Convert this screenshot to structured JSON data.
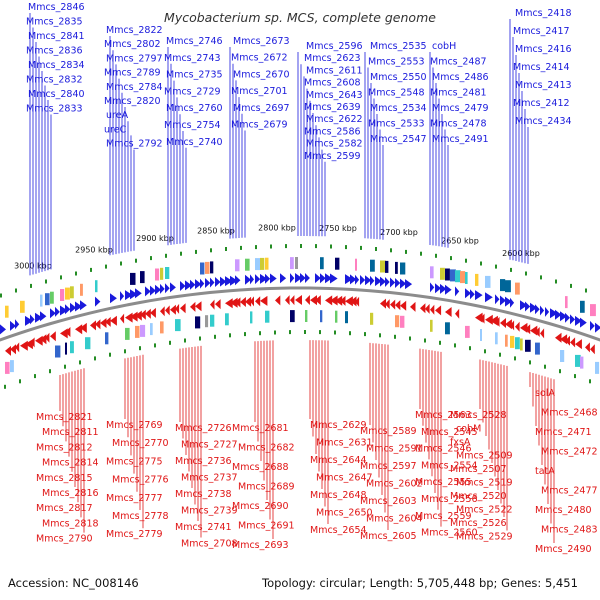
{
  "title": "Mycobacterium sp. MCS, complete genome",
  "footer": {
    "accession": "Accession: NC_008146",
    "summary": "Topology: circular; Length: 5,705,448 bp; Genes: 5,451"
  },
  "colors": {
    "forward": "#1a1adc",
    "reverse": "#e01515",
    "backbone": "#8c8c8c",
    "marker": "#238c23",
    "text": "#111111"
  },
  "ticks": [
    "3000 kbp",
    "2950 kbp",
    "2900 kbp",
    "2850 kbp",
    "2800 kbp",
    "2750 kbp",
    "2700 kbp",
    "2650 kbp",
    "2600 kbp"
  ],
  "top_labels": [
    "Mmcs_2846",
    "Mmcs_2835",
    "Mmcs_2841",
    "Mmcs_2836",
    "Mmcs_2834",
    "Mmcs_2832",
    "Mmcs_2840",
    "Mmcs_2833",
    "Mmcs_2822",
    "Mmcs_2802",
    "Mmcs_2797",
    "Mmcs_2789",
    "Mmcs_2784",
    "Mmcs_2820",
    "ureA",
    "ureC",
    "Mmcs_2792",
    "Mmcs_2746",
    "Mmcs_2743",
    "Mmcs_2735",
    "Mmcs_2729",
    "Mmcs_2760",
    "Mmcs_2754",
    "Mmcs_2740",
    "Mmcs_2673",
    "Mmcs_2672",
    "Mmcs_2670",
    "Mmcs_2701",
    "Mmcs_2697",
    "Mmcs_2679",
    "Mmcs_2596",
    "Mmcs_2623",
    "Mmcs_2611",
    "Mmcs_2608",
    "Mmcs_2643",
    "Mmcs_2639",
    "Mmcs_2622",
    "Mmcs_2586",
    "Mmcs_2582",
    "Mmcs_2599",
    "Mmcs_2535",
    "Mmcs_2553",
    "Mmcs_2550",
    "Mmcs_2548",
    "Mmcs_2534",
    "Mmcs_2533",
    "Mmcs_2547",
    "cobH",
    "Mmcs_2487",
    "Mmcs_2486",
    "Mmcs_2481",
    "Mmcs_2479",
    "Mmcs_2478",
    "Mmcs_2491",
    "Mmcs_2418",
    "Mmcs_2417",
    "Mmcs_2416",
    "Mmcs_2414",
    "Mmcs_2413",
    "Mmcs_2412",
    "Mmcs_2434"
  ],
  "bottom_labels": [
    "Mmcs_2821",
    "Mmcs_2811",
    "Mmcs_2812",
    "Mmcs_2814",
    "Mmcs_2815",
    "Mmcs_2816",
    "Mmcs_2817",
    "Mmcs_2818",
    "Mmcs_2790",
    "Mmcs_2769",
    "Mmcs_2770",
    "Mmcs_2775",
    "Mmcs_2776",
    "Mmcs_2777",
    "Mmcs_2778",
    "Mmcs_2779",
    "Mmcs_2726",
    "Mmcs_2727",
    "Mmcs_2736",
    "Mmcs_2737",
    "Mmcs_2738",
    "Mmcs_2739",
    "Mmcs_2741",
    "Mmcs_2708",
    "Mmcs_2681",
    "Mmcs_2682",
    "Mmcs_2688",
    "Mmcs_2689",
    "Mmcs_2690",
    "Mmcs_2691",
    "Mmcs_2693",
    "Mmcs_2629",
    "Mmcs_2631",
    "Mmcs_2644",
    "Mmcs_2647",
    "Mmcs_2648",
    "Mmcs_2650",
    "Mmcs_2654",
    "Mmcs_2589",
    "Mmcs_2591",
    "Mmcs_2597",
    "Mmcs_2602",
    "Mmcs_2603",
    "Mmcs_2604",
    "Mmcs_2605",
    "Mmcs_2563",
    "Mmcs_2545",
    "Mmcs_2546",
    "Mmcs_2554",
    "Mmcs_2555",
    "Mmcs_2556",
    "Mmcs_2559",
    "Mmcs_2560",
    "Mmcs_2528",
    "cobM",
    "fxsA",
    "Mmcs_2509",
    "Mmcs_2507",
    "Mmcs_2519",
    "Mmcs_2520",
    "Mmcs_2522",
    "Mmcs_2526",
    "Mmcs_2529",
    "solA",
    "Mmcs_2468",
    "Mmcs_2471",
    "Mmcs_2472",
    "tatA",
    "Mmcs_2477",
    "Mmcs_2480",
    "Mmcs_2483",
    "Mmcs_2490",
    "Mmcs_2492"
  ]
}
